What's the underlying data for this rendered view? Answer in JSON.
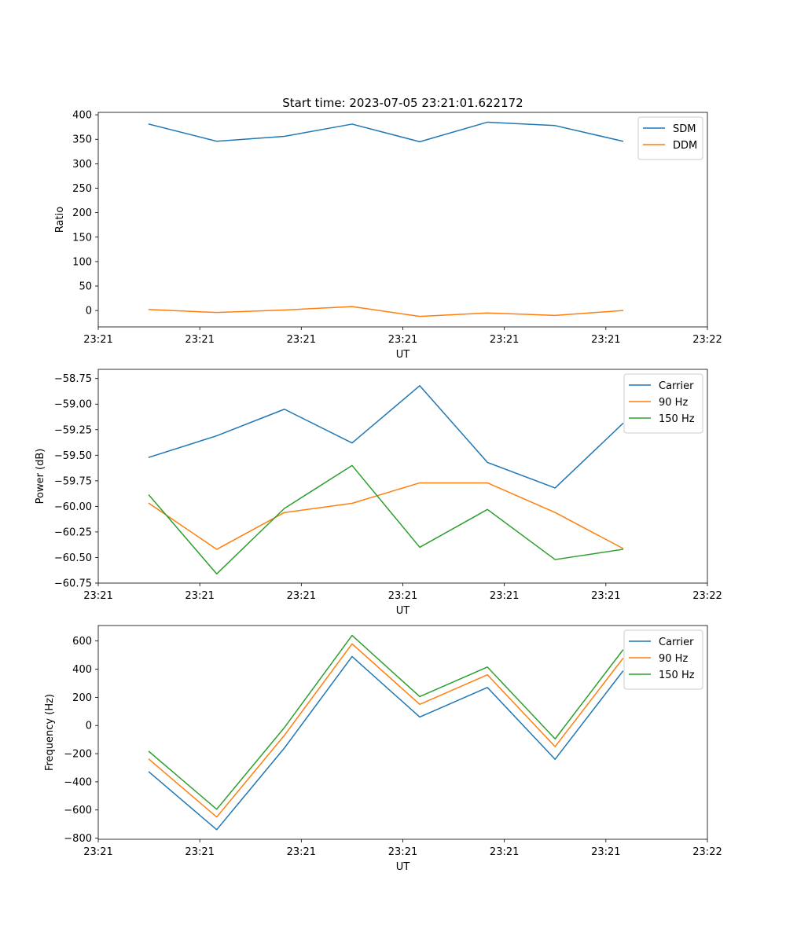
{
  "colors": {
    "blue": "#1f77b4",
    "orange": "#ff7f0e",
    "green": "#2ca02c"
  },
  "chart_data": [
    {
      "type": "line",
      "title": "Start time: 2023-07-05 23:21:01.622172",
      "xlabel": "UT",
      "ylabel": "Ratio",
      "x": [
        1,
        2,
        3,
        4,
        5,
        6,
        7,
        8
      ],
      "xlim": [
        0.25,
        9.25
      ],
      "xticks": [
        0.25,
        1.75,
        3.25,
        4.75,
        6.25,
        7.75,
        9.25
      ],
      "xtick_labels": [
        "23:21",
        "23:21",
        "23:21",
        "23:21",
        "23:21",
        "23:21",
        "23:22"
      ],
      "ylim": [
        -33.5,
        405
      ],
      "yticks": [
        0,
        50,
        100,
        150,
        200,
        250,
        300,
        350,
        400
      ],
      "yticks_label": [
        "0",
        "50",
        "100",
        "150",
        "200",
        "250",
        "300",
        "350",
        "400"
      ],
      "legend_position": "top-right",
      "series": [
        {
          "name": "SDM",
          "color": "blue",
          "values": [
            381,
            346,
            356,
            381,
            345,
            385,
            378,
            346
          ]
        },
        {
          "name": "DDM",
          "color": "orange",
          "values": [
            2,
            -4,
            1,
            8,
            -12,
            -5,
            -10,
            0
          ]
        }
      ]
    },
    {
      "type": "line",
      "title": "",
      "xlabel": "UT",
      "ylabel": "Power (dB)",
      "x": [
        1,
        2,
        3,
        4,
        5,
        6,
        7,
        8
      ],
      "xlim": [
        0.25,
        9.25
      ],
      "xticks": [
        0.25,
        1.75,
        3.25,
        4.75,
        6.25,
        7.75,
        9.25
      ],
      "xtick_labels": [
        "23:21",
        "23:21",
        "23:21",
        "23:21",
        "23:21",
        "23:21",
        "23:22"
      ],
      "ylim": [
        -60.75,
        -58.66
      ],
      "yticks": [
        -60.75,
        -60.5,
        -60.25,
        -60.0,
        -59.75,
        -59.5,
        -59.25,
        -59.0,
        -58.75
      ],
      "yticks_label": [
        "−60.75",
        "−60.50",
        "−60.25",
        "−60.00",
        "−59.75",
        "−59.50",
        "−59.25",
        "−59.00",
        "−58.75"
      ],
      "legend_position": "top-right",
      "series": [
        {
          "name": "Carrier",
          "color": "blue",
          "values": [
            -59.52,
            -59.31,
            -59.05,
            -59.38,
            -58.82,
            -59.57,
            -59.82,
            -59.19
          ]
        },
        {
          "name": "90 Hz",
          "color": "orange",
          "values": [
            -59.97,
            -60.42,
            -60.06,
            -59.97,
            -59.77,
            -59.77,
            -60.06,
            -60.41
          ]
        },
        {
          "name": "150 Hz",
          "color": "green",
          "values": [
            -59.89,
            -60.66,
            -60.02,
            -59.6,
            -60.4,
            -60.03,
            -60.52,
            -60.42
          ]
        }
      ]
    },
    {
      "type": "line",
      "title": "",
      "xlabel": "UT",
      "ylabel": "Frequency (Hz)",
      "x": [
        1,
        2,
        3,
        4,
        5,
        6,
        7,
        8
      ],
      "xlim": [
        0.25,
        9.25
      ],
      "xticks": [
        0.25,
        1.75,
        3.25,
        4.75,
        6.25,
        7.75,
        9.25
      ],
      "xtick_labels": [
        "23:21",
        "23:21",
        "23:21",
        "23:21",
        "23:21",
        "23:21",
        "23:22"
      ],
      "ylim": [
        -808,
        710
      ],
      "yticks": [
        -800,
        -600,
        -400,
        -200,
        0,
        200,
        400,
        600
      ],
      "yticks_label": [
        "−800",
        "−600",
        "−400",
        "−200",
        "0",
        "200",
        "400",
        "600"
      ],
      "legend_position": "top-right",
      "series": [
        {
          "name": "Carrier",
          "color": "blue",
          "values": [
            -330,
            -740,
            -160,
            490,
            60,
            270,
            -240,
            385
          ]
        },
        {
          "name": "90 Hz",
          "color": "orange",
          "values": [
            -240,
            -650,
            -70,
            580,
            150,
            360,
            -150,
            475
          ]
        },
        {
          "name": "150 Hz",
          "color": "green",
          "values": [
            -185,
            -595,
            -15,
            640,
            205,
            415,
            -95,
            535
          ]
        }
      ]
    }
  ]
}
